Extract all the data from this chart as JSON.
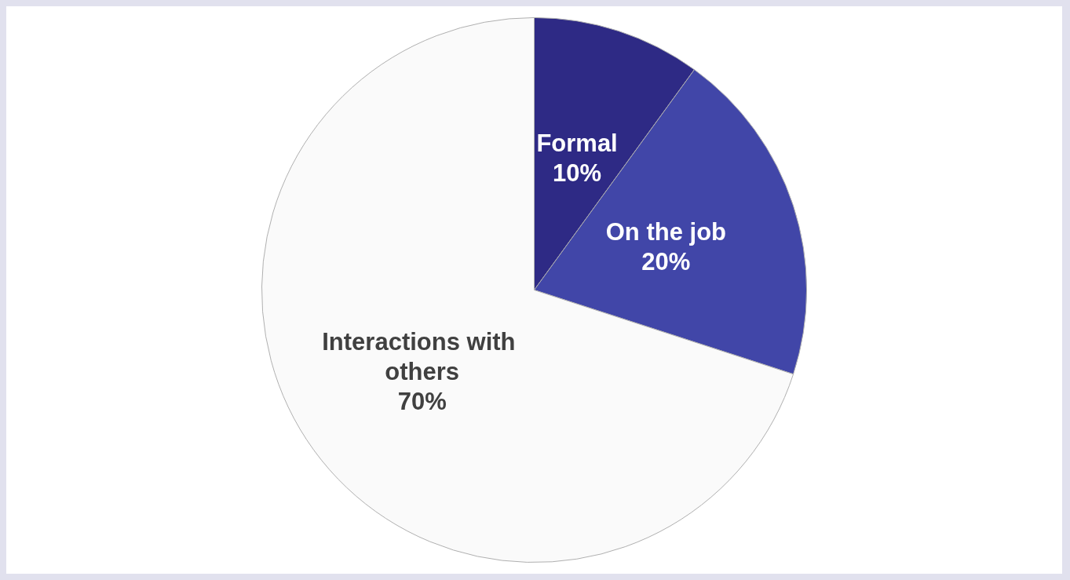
{
  "chart_data": {
    "type": "pie",
    "categories": [
      "Formal",
      "On the job",
      "Interactions with others"
    ],
    "values": [
      10,
      20,
      70
    ],
    "value_labels": [
      "10%",
      "20%",
      "70%"
    ],
    "colors": [
      "#2e2a85",
      "#4146a8",
      "#fafafa"
    ]
  }
}
